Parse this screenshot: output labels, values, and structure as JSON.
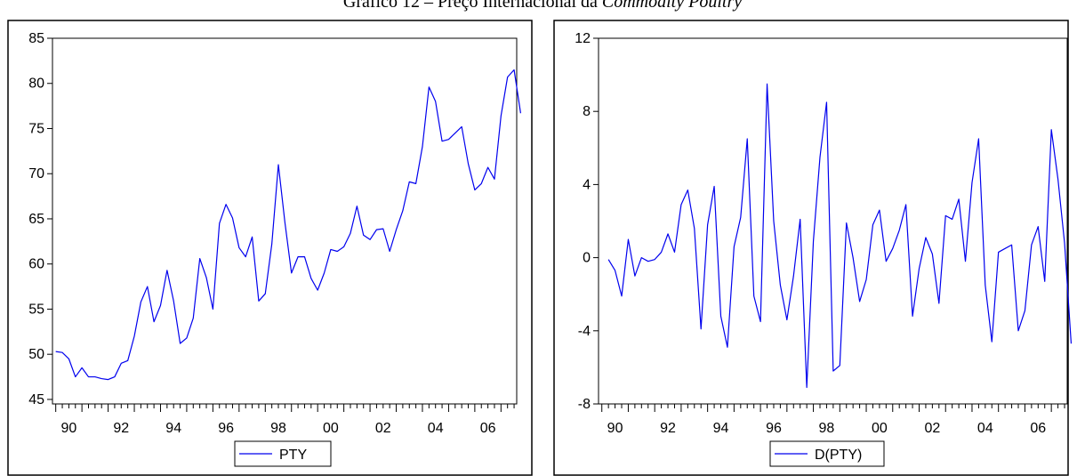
{
  "title": {
    "prefix": "Gráfico 12 – Preço Internacional da ",
    "italic": "Commodity Poultry"
  },
  "colors": {
    "series": "#0000ee",
    "frame": "#000000",
    "background": "#ffffff"
  },
  "chart_data": [
    {
      "type": "line",
      "series": [
        {
          "name": "PTY",
          "values": [
            50.3,
            50.2,
            49.5,
            47.5,
            48.5,
            47.5,
            47.5,
            47.3,
            47.2,
            47.5,
            49.0,
            49.3,
            52.0,
            55.8,
            57.5,
            53.6,
            55.4,
            59.3,
            55.9,
            51.2,
            51.8,
            54.0,
            60.6,
            58.5,
            55.0,
            64.5,
            66.6,
            65.1,
            61.8,
            60.8,
            63.0,
            55.9,
            56.7,
            62.2,
            71.0,
            64.6,
            59.0,
            60.8,
            60.8,
            58.4,
            57.1,
            59.0,
            61.6,
            61.4,
            61.9,
            63.4,
            66.4,
            63.2,
            62.7,
            63.8,
            63.9,
            61.4,
            63.8,
            65.9,
            69.1,
            68.9,
            73.0,
            79.6,
            78.0,
            73.6,
            73.8,
            74.5,
            75.2,
            71.1,
            68.2,
            68.9,
            70.7,
            69.4,
            76.4,
            80.7,
            81.5,
            76.7
          ]
        }
      ],
      "x_start": 1990.0,
      "x_step": 0.25,
      "x_tick_labels": [
        "90",
        "92",
        "94",
        "96",
        "98",
        "00",
        "02",
        "04",
        "06"
      ],
      "y_ticks": [
        45,
        50,
        55,
        60,
        65,
        70,
        75,
        80,
        85
      ],
      "ylim": [
        44.5,
        85
      ],
      "legend": "PTY",
      "legend_position": "bottom-center",
      "grid": false
    },
    {
      "type": "line",
      "series": [
        {
          "name": "D(PTY)",
          "values": [
            -0.1,
            -0.7,
            -2.1,
            1.0,
            -1.0,
            0.0,
            -0.2,
            -0.1,
            0.3,
            1.3,
            0.3,
            2.9,
            3.7,
            1.6,
            -3.9,
            1.8,
            3.9,
            -3.2,
            -4.9,
            0.6,
            2.2,
            6.5,
            -2.1,
            -3.5,
            9.5,
            2.0,
            -1.5,
            -3.4,
            -1.0,
            2.1,
            -7.1,
            0.9,
            5.5,
            8.5,
            -6.2,
            -5.9,
            1.9,
            0.0,
            -2.4,
            -1.2,
            1.8,
            2.6,
            -0.2,
            0.5,
            1.5,
            2.9,
            -3.2,
            -0.6,
            1.1,
            0.2,
            -2.5,
            2.3,
            2.1,
            3.2,
            -0.2,
            4.1,
            6.5,
            -1.5,
            -4.6,
            0.3,
            0.5,
            0.7,
            -4.0,
            -2.9,
            0.7,
            1.7,
            -1.3,
            7.0,
            4.3,
            0.8,
            -4.7
          ]
        }
      ],
      "x_start": 1990.25,
      "x_step": 0.25,
      "x_tick_labels": [
        "90",
        "92",
        "94",
        "96",
        "98",
        "00",
        "02",
        "04",
        "06"
      ],
      "y_ticks": [
        -8,
        -4,
        0,
        4,
        8,
        12
      ],
      "ylim": [
        -8,
        12
      ],
      "legend": "D(PTY)",
      "legend_position": "bottom-center",
      "grid": false
    }
  ]
}
